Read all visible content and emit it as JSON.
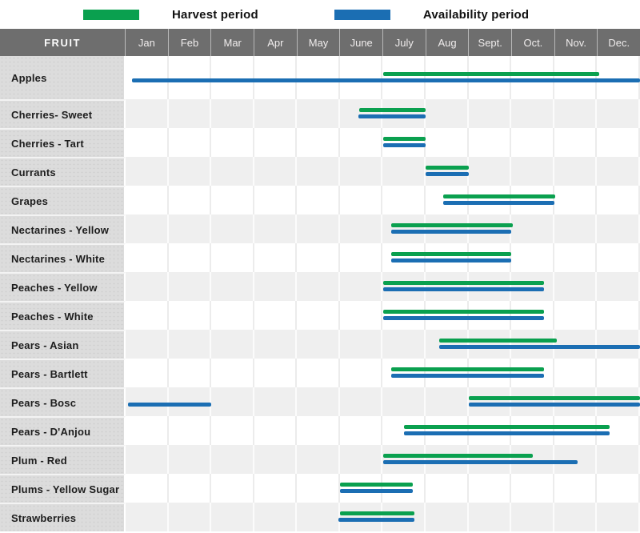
{
  "colors": {
    "harvest": "#0aa04f",
    "availability": "#1b6eb3",
    "header_bg": "#6e6e6e",
    "label_column_bg": "#dcdcdc",
    "shaded_row_bg": "#efefef"
  },
  "legend": {
    "harvest_label": "Harvest period",
    "availability_label": "Availability period"
  },
  "header": {
    "fruit_label": "FRUIT",
    "months": [
      "Jan",
      "Feb",
      "Mar",
      "Apr",
      "May",
      "June",
      "July",
      "Aug",
      "Sept.",
      "Oct.",
      "Nov.",
      "Dec."
    ]
  },
  "chart_data": {
    "type": "gantt",
    "title": "Fruit harvest and availability periods by month",
    "x_axis": {
      "labels": [
        "Jan",
        "Feb",
        "Mar",
        "Apr",
        "May",
        "June",
        "July",
        "Aug",
        "Sept.",
        "Oct.",
        "Nov.",
        "Dec."
      ],
      "unit": "month index, 0 = Jan 1, 12 = Dec 31",
      "range": [
        0,
        12
      ]
    },
    "legend_position": "top",
    "series_names": [
      "Harvest period",
      "Availability period"
    ],
    "rows": [
      {
        "fruit": "Apples",
        "harvest": [
          [
            6.0,
            11.05
          ]
        ],
        "availability": [
          [
            0.15,
            12.0
          ]
        ]
      },
      {
        "fruit": "Cherries- Sweet",
        "harvest": [
          [
            5.45,
            7.0
          ]
        ],
        "availability": [
          [
            5.43,
            7.0
          ]
        ]
      },
      {
        "fruit": "Cherries - Tart",
        "harvest": [
          [
            6.0,
            7.0
          ]
        ],
        "availability": [
          [
            6.0,
            7.0
          ]
        ]
      },
      {
        "fruit": "Currants",
        "harvest": [
          [
            7.0,
            8.0
          ]
        ],
        "availability": [
          [
            7.0,
            8.0
          ]
        ]
      },
      {
        "fruit": "Grapes",
        "harvest": [
          [
            7.4,
            10.03
          ]
        ],
        "availability": [
          [
            7.4,
            10.0
          ]
        ]
      },
      {
        "fruit": "Nectarines - Yellow",
        "harvest": [
          [
            6.2,
            9.03
          ]
        ],
        "availability": [
          [
            6.2,
            9.0
          ]
        ]
      },
      {
        "fruit": "Nectarines - White",
        "harvest": [
          [
            6.2,
            9.0
          ]
        ],
        "availability": [
          [
            6.2,
            9.0
          ]
        ]
      },
      {
        "fruit": "Peaches - Yellow",
        "harvest": [
          [
            6.0,
            9.76
          ]
        ],
        "availability": [
          [
            6.0,
            9.76
          ]
        ]
      },
      {
        "fruit": "Peaches - White",
        "harvest": [
          [
            6.0,
            9.76
          ]
        ],
        "availability": [
          [
            6.0,
            9.76
          ]
        ]
      },
      {
        "fruit": "Pears - Asian",
        "harvest": [
          [
            7.32,
            10.06
          ]
        ],
        "availability": [
          [
            7.32,
            12.0
          ]
        ]
      },
      {
        "fruit": "Pears - Bartlett",
        "harvest": [
          [
            6.2,
            9.76
          ]
        ],
        "availability": [
          [
            6.2,
            9.76
          ]
        ]
      },
      {
        "fruit": "Pears - Bosc",
        "harvest": [
          [
            8.0,
            12.0
          ]
        ],
        "availability": [
          [
            0.05,
            2.0
          ],
          [
            8.0,
            12.0
          ]
        ]
      },
      {
        "fruit": "Pears - D'Anjou",
        "harvest": [
          [
            6.5,
            11.3
          ]
        ],
        "availability": [
          [
            6.5,
            11.3
          ]
        ]
      },
      {
        "fruit": "Plum - Red",
        "harvest": [
          [
            6.0,
            9.5
          ]
        ],
        "availability": [
          [
            6.0,
            10.55
          ]
        ]
      },
      {
        "fruit": "Plums - Yellow Sugar",
        "harvest": [
          [
            5.0,
            6.7
          ]
        ],
        "availability": [
          [
            5.0,
            6.7
          ]
        ]
      },
      {
        "fruit": "Strawberries",
        "harvest": [
          [
            5.0,
            6.73
          ]
        ],
        "availability": [
          [
            4.97,
            6.73
          ]
        ]
      }
    ]
  }
}
